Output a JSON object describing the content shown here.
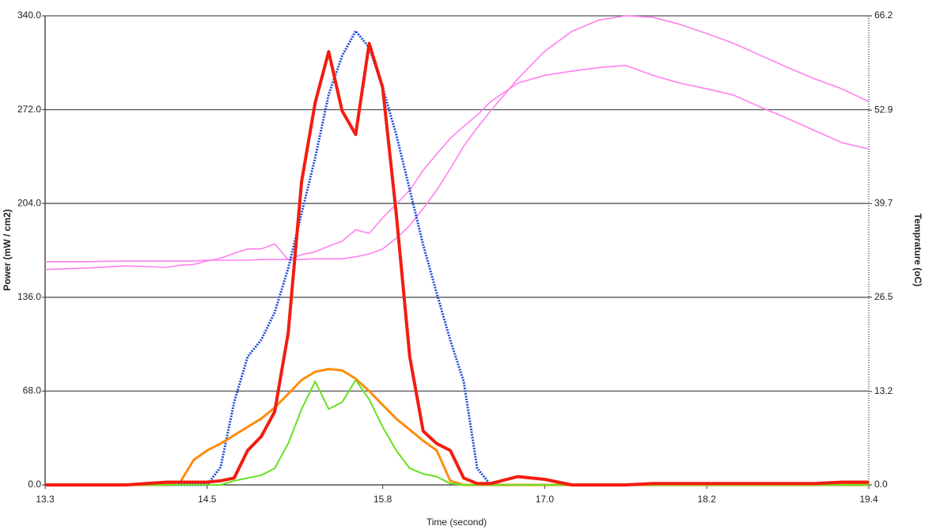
{
  "chart_data": {
    "type": "line",
    "x_label": "Time (second)",
    "y_label": "Power (mW / cm2)",
    "y2_label": "Temprature (oC)",
    "grid": true,
    "x": [
      13.3,
      13.6,
      13.9,
      14.2,
      14.3,
      14.4,
      14.5,
      14.6,
      14.7,
      14.8,
      14.9,
      15.0,
      15.1,
      15.2,
      15.3,
      15.4,
      15.5,
      15.6,
      15.7,
      15.8,
      15.9,
      16.0,
      16.1,
      16.2,
      16.3,
      16.4,
      16.5,
      16.6,
      16.8,
      17.0,
      17.2,
      17.4,
      17.6,
      17.8,
      18.0,
      18.2,
      18.4,
      18.6,
      18.8,
      19.0,
      19.2,
      19.4
    ],
    "xlim": [
      13.3,
      19.4
    ],
    "xticks": [
      13.3,
      14.5,
      15.8,
      {
        "value": 17,
        "label": "17.0"
      },
      18.2,
      19.4
    ],
    "ylim": [
      0,
      340
    ],
    "yticks": [
      {
        "value": 0,
        "label": "0.0"
      },
      {
        "value": 68,
        "label": "68.0"
      },
      {
        "value": 136,
        "label": "136.0"
      },
      {
        "value": 204,
        "label": "204.0"
      },
      {
        "value": 272,
        "label": "272.0"
      },
      {
        "value": 340,
        "label": "340.0"
      }
    ],
    "y2lim": [
      0,
      66.2
    ],
    "y2ticks": [
      {
        "value": 0,
        "label": "0.0"
      },
      13.2,
      26.5,
      39.7,
      52.9,
      66.2
    ],
    "series": [
      {
        "color": "#ff80f0",
        "width": 1.6,
        "axis": "y2",
        "values": [
          31.5,
          31.5,
          31.6,
          31.6,
          31.6,
          31.6,
          31.7,
          31.7,
          31.7,
          31.7,
          31.8,
          31.8,
          31.8,
          31.8,
          31.9,
          31.9,
          31.9,
          32.2,
          32.6,
          33.3,
          34.8,
          36.6,
          39,
          41.6,
          44.6,
          47.8,
          50.4,
          52.8,
          57.3,
          61.2,
          64,
          65.6,
          66.2,
          66,
          65,
          63.7,
          62.3,
          60.6,
          58.9,
          57.3,
          55.9,
          54.1
        ]
      },
      {
        "color": "#ff80f0",
        "width": 1.6,
        "axis": "y2",
        "values": [
          30.4,
          30.6,
          30.9,
          30.7,
          31,
          31.1,
          31.6,
          32,
          32.7,
          33.3,
          33.3,
          34,
          31.8,
          32.5,
          32.9,
          33.7,
          34.4,
          36,
          35.5,
          37.7,
          39.6,
          41.6,
          44.4,
          46.7,
          48.9,
          50.6,
          52.2,
          54.1,
          56.7,
          57.8,
          58.4,
          58.9,
          59.2,
          57.8,
          56.7,
          55.9,
          55,
          53.3,
          51.7,
          50,
          48.3,
          47.4
        ]
      },
      {
        "color": "#1f4fd6",
        "width": 3,
        "dash": true,
        "values": [
          0,
          0,
          0,
          0,
          0,
          0,
          0,
          13,
          60,
          93,
          105,
          125,
          157,
          197,
          237,
          283,
          311,
          329,
          317,
          288,
          254,
          214,
          174,
          139,
          105,
          75,
          12,
          0,
          0,
          0,
          0,
          0,
          0,
          0,
          0,
          0,
          0,
          0,
          0,
          0,
          0,
          0
        ]
      },
      {
        "color": "#ff8c10",
        "width": 3,
        "values": [
          0,
          0,
          0,
          0,
          2,
          18,
          25,
          30,
          36,
          42,
          48,
          56,
          66,
          76,
          82,
          84,
          83,
          77,
          68,
          58,
          48,
          40,
          32,
          25,
          3,
          0,
          0,
          0,
          0,
          0,
          0,
          0,
          0,
          0,
          0,
          0,
          0,
          0,
          0,
          0,
          0,
          0
        ]
      },
      {
        "color": "#66e020",
        "width": 2,
        "values": [
          0,
          0,
          0,
          0,
          0,
          0,
          0,
          0,
          3,
          5,
          7,
          12,
          30,
          55,
          75,
          55,
          60,
          76,
          62,
          42,
          25,
          12,
          8,
          6,
          1,
          0,
          0,
          0,
          0,
          0,
          0,
          0,
          0,
          0,
          0,
          0,
          0,
          0,
          0,
          0,
          0,
          0
        ]
      },
      {
        "color": "#f21d10",
        "width": 4,
        "values": [
          0,
          0,
          0,
          2,
          2,
          2,
          2,
          3,
          5,
          25,
          35,
          53,
          110,
          220,
          277,
          314,
          271,
          254,
          320,
          288,
          197,
          93,
          39,
          30,
          25,
          5,
          1,
          1,
          6,
          4,
          0,
          0,
          0,
          1,
          1,
          1,
          1,
          1,
          1,
          1,
          2,
          2
        ]
      }
    ]
  }
}
